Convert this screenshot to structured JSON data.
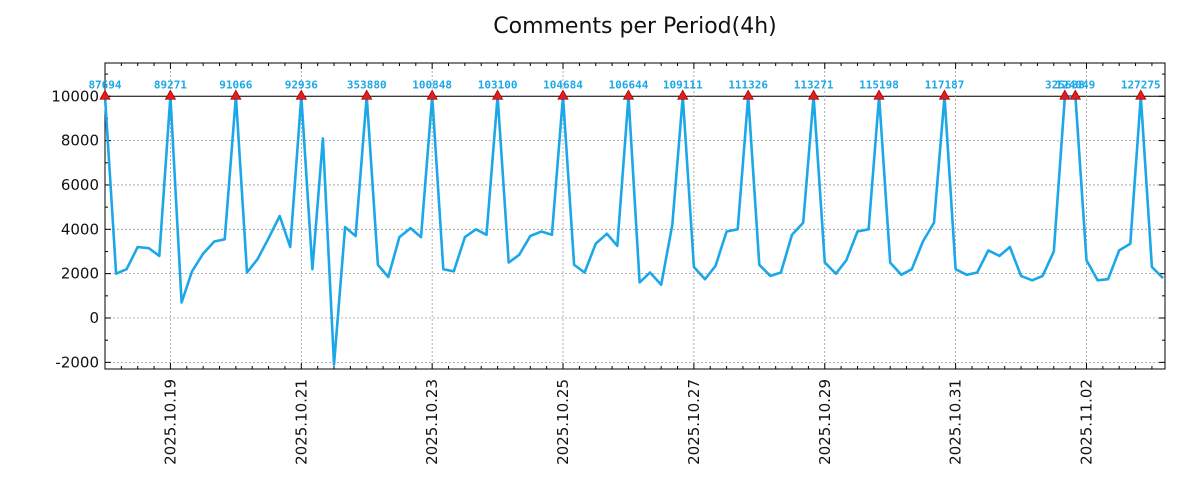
{
  "chart_data": {
    "type": "line",
    "title": "Comments per Period(4h)",
    "xlabel": "",
    "ylabel": "",
    "ylim": [
      -2300,
      11500
    ],
    "y_ticks": [
      -2000,
      0,
      2000,
      4000,
      6000,
      8000,
      10000
    ],
    "x_tick_labels": [
      "2025.10.19",
      "2025.10.21",
      "2025.10.23",
      "2025.10.25",
      "2025.10.27",
      "2025.10.29",
      "2025.10.31",
      "2025.11.02"
    ],
    "x_tick_days": [
      1,
      3,
      5,
      7,
      9,
      11,
      13,
      15
    ],
    "x_range_days": [
      0,
      16.2
    ],
    "grid": true,
    "clip_value": 10000,
    "series": [
      {
        "name": "Comments",
        "color": "#1ca8e8",
        "points": [
          [
            0.0,
            10000
          ],
          [
            0.17,
            2000
          ],
          [
            0.33,
            2200
          ],
          [
            0.5,
            3200
          ],
          [
            0.67,
            3150
          ],
          [
            0.83,
            2800
          ],
          [
            1.0,
            10000
          ],
          [
            1.17,
            700
          ],
          [
            1.33,
            2100
          ],
          [
            1.5,
            2900
          ],
          [
            1.67,
            3450
          ],
          [
            1.83,
            3550
          ],
          [
            2.0,
            10000
          ],
          [
            2.17,
            2050
          ],
          [
            2.33,
            2650
          ],
          [
            2.5,
            3600
          ],
          [
            2.67,
            4600
          ],
          [
            2.83,
            3200
          ],
          [
            3.0,
            10000
          ],
          [
            3.17,
            2200
          ],
          [
            3.33,
            8100
          ],
          [
            3.5,
            -2100
          ],
          [
            3.67,
            4100
          ],
          [
            3.83,
            3700
          ],
          [
            4.0,
            10000
          ],
          [
            4.17,
            2400
          ],
          [
            4.33,
            1850
          ],
          [
            4.5,
            3650
          ],
          [
            4.67,
            4050
          ],
          [
            4.83,
            3650
          ],
          [
            5.0,
            10000
          ],
          [
            5.17,
            2200
          ],
          [
            5.33,
            2100
          ],
          [
            5.5,
            3650
          ],
          [
            5.67,
            4000
          ],
          [
            5.83,
            3750
          ],
          [
            6.0,
            10000
          ],
          [
            6.17,
            2500
          ],
          [
            6.33,
            2850
          ],
          [
            6.5,
            3700
          ],
          [
            6.67,
            3900
          ],
          [
            6.83,
            3750
          ],
          [
            7.0,
            10000
          ],
          [
            7.17,
            2400
          ],
          [
            7.33,
            2050
          ],
          [
            7.5,
            3350
          ],
          [
            7.67,
            3800
          ],
          [
            7.83,
            3250
          ],
          [
            8.0,
            10000
          ],
          [
            8.17,
            1600
          ],
          [
            8.33,
            2050
          ],
          [
            8.5,
            1500
          ],
          [
            8.67,
            4200
          ],
          [
            8.83,
            10000
          ],
          [
            9.0,
            2300
          ],
          [
            9.17,
            1750
          ],
          [
            9.33,
            2350
          ],
          [
            9.5,
            3900
          ],
          [
            9.67,
            4000
          ],
          [
            9.83,
            10000
          ],
          [
            10.0,
            2400
          ],
          [
            10.17,
            1900
          ],
          [
            10.33,
            2050
          ],
          [
            10.5,
            3750
          ],
          [
            10.67,
            4300
          ],
          [
            10.83,
            10000
          ],
          [
            11.0,
            2500
          ],
          [
            11.17,
            2000
          ],
          [
            11.33,
            2600
          ],
          [
            11.5,
            3900
          ],
          [
            11.67,
            4000
          ],
          [
            11.83,
            10000
          ],
          [
            12.0,
            2500
          ],
          [
            12.17,
            1950
          ],
          [
            12.33,
            2200
          ],
          [
            12.5,
            3450
          ],
          [
            12.67,
            4300
          ],
          [
            12.83,
            10000
          ],
          [
            13.0,
            2200
          ],
          [
            13.17,
            1950
          ],
          [
            13.33,
            2050
          ],
          [
            13.5,
            3050
          ],
          [
            13.67,
            2800
          ],
          [
            13.83,
            3200
          ],
          [
            14.0,
            1900
          ],
          [
            14.17,
            1700
          ],
          [
            14.33,
            1900
          ],
          [
            14.5,
            3000
          ],
          [
            14.67,
            10000
          ],
          [
            14.83,
            10000
          ],
          [
            15.0,
            2600
          ],
          [
            15.17,
            1700
          ],
          [
            15.33,
            1750
          ],
          [
            15.5,
            3050
          ],
          [
            15.67,
            3350
          ],
          [
            15.83,
            10000
          ],
          [
            16.0,
            2300
          ],
          [
            16.17,
            1800
          ]
        ]
      }
    ],
    "peaks": [
      {
        "day": 0.0,
        "label": "87694"
      },
      {
        "day": 1.0,
        "label": "89271"
      },
      {
        "day": 2.0,
        "label": "91066"
      },
      {
        "day": 3.0,
        "label": "92936"
      },
      {
        "day": 4.0,
        "label": "353880"
      },
      {
        "day": 5.0,
        "label": "100848"
      },
      {
        "day": 6.0,
        "label": "103100"
      },
      {
        "day": 7.0,
        "label": "104684"
      },
      {
        "day": 8.0,
        "label": "106644"
      },
      {
        "day": 8.83,
        "label": "109111"
      },
      {
        "day": 9.83,
        "label": "111326"
      },
      {
        "day": 10.83,
        "label": "113271"
      },
      {
        "day": 11.83,
        "label": "115198"
      },
      {
        "day": 12.83,
        "label": "117187"
      },
      {
        "day": 14.67,
        "label": "325688"
      },
      {
        "day": 14.83,
        "label": "124049"
      },
      {
        "day": 15.83,
        "label": "127275"
      }
    ]
  }
}
